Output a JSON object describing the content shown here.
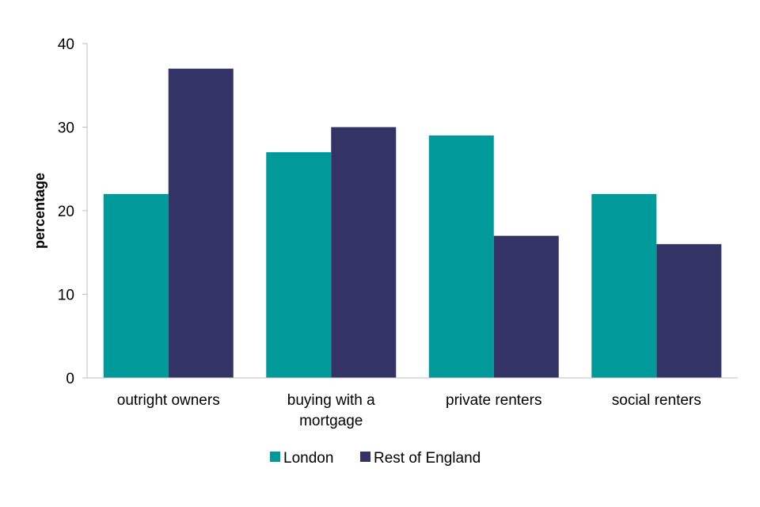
{
  "chart_data": {
    "type": "bar",
    "title": "",
    "xlabel": "",
    "ylabel": "percentage",
    "ylim": [
      0,
      40
    ],
    "yticks": [
      0,
      10,
      20,
      30,
      40
    ],
    "grid": false,
    "legend_position": "bottom",
    "categories": [
      [
        "outright owners"
      ],
      [
        "buying with a",
        "mortgage"
      ],
      [
        "private renters"
      ],
      [
        "social renters"
      ]
    ],
    "series": [
      {
        "name": "London",
        "color": "#009a9a",
        "values": [
          22,
          27,
          29,
          22
        ]
      },
      {
        "name": "Rest of England",
        "color": "#333366",
        "values": [
          37,
          30,
          17,
          16
        ]
      }
    ]
  }
}
